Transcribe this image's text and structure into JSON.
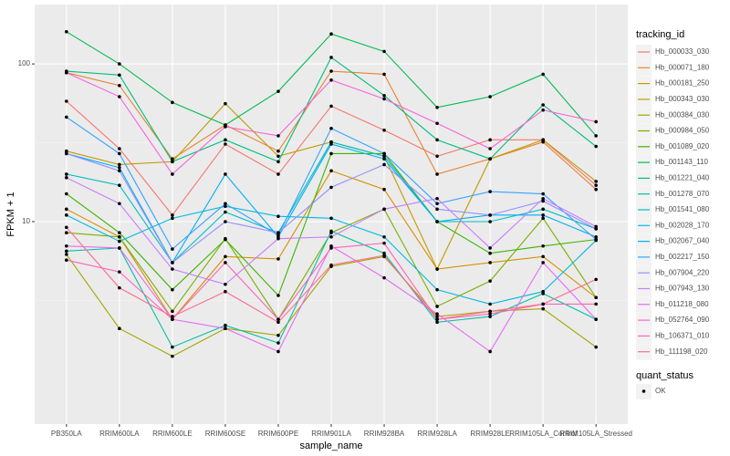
{
  "chart_data": {
    "type": "line",
    "log_y": true,
    "grid": true,
    "x_label": "sample_name",
    "y_label": "FPKM + 1",
    "legend_title": "tracking_id",
    "legend_position": "right",
    "point_legend": {
      "title": "quant_status",
      "labels": [
        "OK"
      ],
      "color": "#000000"
    },
    "categories": [
      "PB350LA",
      "RRIM600LA",
      "RRIM600LE",
      "RRIM600SE",
      "RRIM600PE",
      "RRIM901LA",
      "RRIM928BA",
      "RRIM928LA",
      "RRIM928LE",
      "RRIM105LA_Control",
      "RRIM105LA_Stressed"
    ],
    "ylim": [
      0.52,
      238
    ],
    "yticks": [
      10,
      100
    ],
    "series": [
      {
        "name": "Hb_000033_030",
        "color": "#F8766D",
        "values": [
          58,
          29,
          11,
          31,
          20,
          54,
          38,
          26,
          33,
          33,
          17
        ]
      },
      {
        "name": "Hb_000071_180",
        "color": "#EA8331",
        "values": [
          88,
          73,
          25,
          41,
          28,
          90,
          86,
          20,
          25,
          32,
          16
        ]
      },
      {
        "name": "Hb_000181_250",
        "color": "#D89000",
        "values": [
          12,
          8,
          2.4,
          6,
          5.8,
          21,
          16,
          5,
          5.5,
          6,
          3.3
        ]
      },
      {
        "name": "Hb_000343_030",
        "color": "#C09B00",
        "values": [
          28,
          23,
          24,
          56,
          26,
          32,
          26,
          5,
          25,
          33,
          18
        ]
      },
      {
        "name": "Hb_000384_030",
        "color": "#A3A500",
        "values": [
          6.2,
          2.1,
          1.4,
          2.1,
          1.9,
          5.2,
          6,
          2.5,
          2.7,
          2.8,
          1.6
        ]
      },
      {
        "name": "Hb_000984_050",
        "color": "#7CAE00",
        "values": [
          8.5,
          8,
          2.7,
          7.8,
          2.4,
          8.5,
          12,
          2.9,
          4.2,
          10.5,
          3.3
        ]
      },
      {
        "name": "Hb_001089_020",
        "color": "#39B600",
        "values": [
          15,
          8.5,
          3.7,
          7.7,
          3.4,
          27,
          27,
          10,
          6.3,
          7,
          7.7
        ]
      },
      {
        "name": "Hb_001143_110",
        "color": "#00BB4E",
        "values": [
          160,
          100,
          57,
          41,
          67,
          155,
          120,
          53,
          62,
          86,
          35
        ]
      },
      {
        "name": "Hb_001221_040",
        "color": "#00BF7D",
        "values": [
          90,
          85,
          24,
          33,
          24,
          110,
          63,
          33,
          25,
          55,
          30
        ]
      },
      {
        "name": "Hb_001278_070",
        "color": "#00C1A3",
        "values": [
          6.5,
          6.8,
          1.6,
          2.2,
          1.7,
          8.7,
          6.3,
          2.3,
          2.5,
          3.5,
          2.4
        ]
      },
      {
        "name": "Hb_001541_080",
        "color": "#00BFC4",
        "values": [
          20,
          17,
          5.5,
          11.5,
          8.5,
          32,
          26,
          10,
          10,
          12,
          9
        ]
      },
      {
        "name": "Hb_002028_170",
        "color": "#00BAE0",
        "values": [
          11,
          7.5,
          10.5,
          12.5,
          10.8,
          10.5,
          8,
          3.7,
          3,
          3.6,
          7.6
        ]
      },
      {
        "name": "Hb_002067_040",
        "color": "#00B0F6",
        "values": [
          27,
          22,
          5.5,
          20,
          8,
          31,
          25,
          10,
          11,
          11,
          8
        ]
      },
      {
        "name": "Hb_002217_150",
        "color": "#35A2FF",
        "values": [
          46,
          27,
          6.7,
          13,
          8.2,
          39,
          27,
          13,
          15.5,
          15,
          7.7
        ]
      },
      {
        "name": "Hb_007904_220",
        "color": "#9590FF",
        "values": [
          27,
          21,
          5.5,
          10,
          8.5,
          16.5,
          23,
          12,
          11,
          13.5,
          9
        ]
      },
      {
        "name": "Hb_007943_130",
        "color": "#C77CFF",
        "values": [
          19,
          13,
          5,
          4,
          7.8,
          8,
          12,
          14,
          6.8,
          14,
          9.3
        ]
      },
      {
        "name": "Hb_011218_080",
        "color": "#E76BF3",
        "values": [
          7,
          6.8,
          2.4,
          2.1,
          1.5,
          7,
          4.4,
          2.6,
          1.5,
          5.5,
          2.4
        ]
      },
      {
        "name": "Hb_052764_090",
        "color": "#FA62DB",
        "values": [
          88,
          62,
          20,
          40,
          35,
          79,
          60,
          42,
          29,
          51,
          43
        ]
      },
      {
        "name": "Hb_106371_010",
        "color": "#FF62BC",
        "values": [
          5.7,
          4.8,
          2.4,
          5.5,
          2.4,
          6.8,
          7.3,
          2.4,
          2.6,
          3,
          3
        ]
      },
      {
        "name": "Hb_111198_020",
        "color": "#FF6C91",
        "values": [
          9.2,
          3.8,
          2.5,
          3.6,
          2.3,
          5.3,
          6.1,
          2.4,
          2.7,
          3,
          4.3
        ]
      }
    ]
  }
}
